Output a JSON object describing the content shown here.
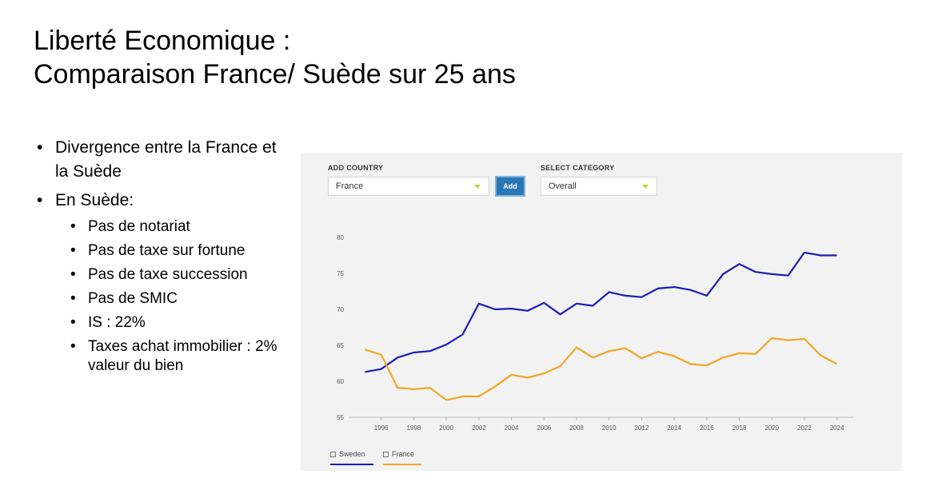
{
  "slide": {
    "title_line1": "Liberté Economique :",
    "title_line2": "Comparaison France/ Suède  sur  25 ans"
  },
  "bullets": [
    {
      "text": "Divergence entre la France et la Suède"
    },
    {
      "text": "En Suède:",
      "sub": [
        "Pas de notariat",
        "Pas de taxe sur fortune",
        "Pas de taxe succession",
        "Pas de SMIC",
        "IS : 22%",
        "Taxes achat immobilier : 2% valeur du bien"
      ]
    }
  ],
  "controls": {
    "add_country_label": "ADD COUNTRY",
    "country_value": "France",
    "add_button": "Add",
    "select_category_label": "SELECT CATEGORY",
    "category_value": "Overall"
  },
  "colors": {
    "sweden": "#1c1cb4",
    "france": "#f2a622",
    "panel": "#f2f2f2",
    "button": "#2b77b5"
  },
  "chart_data": {
    "type": "line",
    "title": "",
    "xlabel": "",
    "ylabel": "",
    "ylim": [
      55,
      80
    ],
    "yticks": [
      55,
      60,
      65,
      70,
      75,
      80
    ],
    "xlim": [
      1994,
      2025
    ],
    "xticks": [
      1996,
      1998,
      2000,
      2002,
      2004,
      2006,
      2008,
      2010,
      2012,
      2014,
      2016,
      2018,
      2020,
      2022,
      2024
    ],
    "grid": false,
    "legend": "bottom-left",
    "x": [
      1995,
      1996,
      1997,
      1998,
      1999,
      2000,
      2001,
      2002,
      2003,
      2004,
      2005,
      2006,
      2007,
      2008,
      2009,
      2010,
      2011,
      2012,
      2013,
      2014,
      2015,
      2016,
      2017,
      2018,
      2019,
      2020,
      2021,
      2022,
      2023,
      2024
    ],
    "series": [
      {
        "name": "Sweden",
        "color": "#1c1cb4",
        "values": [
          61.3,
          61.7,
          63.3,
          64.0,
          64.2,
          65.1,
          66.5,
          70.8,
          70.0,
          70.1,
          69.8,
          70.9,
          69.3,
          70.8,
          70.5,
          72.4,
          71.9,
          71.7,
          72.9,
          73.1,
          72.7,
          71.9,
          74.9,
          76.3,
          75.2,
          74.9,
          74.7,
          77.9,
          77.5,
          77.5
        ]
      },
      {
        "name": "France",
        "color": "#f2a622",
        "values": [
          64.4,
          63.7,
          59.1,
          58.9,
          59.1,
          57.4,
          57.9,
          57.9,
          59.3,
          60.9,
          60.5,
          61.1,
          62.1,
          64.7,
          63.3,
          64.2,
          64.6,
          63.2,
          64.1,
          63.5,
          62.4,
          62.2,
          63.3,
          63.9,
          63.8,
          66.0,
          65.7,
          65.9,
          63.6,
          62.4
        ]
      }
    ]
  }
}
